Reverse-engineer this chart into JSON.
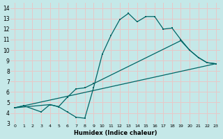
{
  "xlabel": "Humidex (Indice chaleur)",
  "xlim": [
    -0.5,
    23.5
  ],
  "ylim": [
    3,
    14.5
  ],
  "xticks": [
    0,
    1,
    2,
    3,
    4,
    5,
    6,
    7,
    8,
    9,
    10,
    11,
    12,
    13,
    14,
    15,
    16,
    17,
    18,
    19,
    20,
    21,
    22,
    23
  ],
  "yticks": [
    3,
    4,
    5,
    6,
    7,
    8,
    9,
    10,
    11,
    12,
    13,
    14
  ],
  "bg_color": "#c5e8e8",
  "grid_color": "#e8c8c8",
  "line_color": "#006666",
  "line1_x": [
    0,
    1,
    3,
    4,
    5,
    6,
    7,
    8,
    9,
    10,
    11,
    12,
    13,
    14,
    15,
    16,
    17,
    18,
    19,
    20,
    21,
    22,
    23
  ],
  "line1_y": [
    4.5,
    4.7,
    4.1,
    4.8,
    4.6,
    4.1,
    3.6,
    3.5,
    6.4,
    9.6,
    11.4,
    12.9,
    13.5,
    12.7,
    13.2,
    13.2,
    12.0,
    12.1,
    11.0,
    10.0,
    9.3,
    8.8,
    8.7
  ],
  "line2_x": [
    0,
    23
  ],
  "line2_y": [
    4.5,
    8.7
  ],
  "line3_x": [
    0,
    4,
    5,
    6,
    7,
    8,
    9,
    19,
    20,
    21,
    22,
    23
  ],
  "line3_y": [
    4.5,
    4.8,
    4.6,
    5.5,
    6.3,
    6.4,
    6.8,
    10.9,
    10.0,
    9.3,
    8.8,
    8.7
  ]
}
